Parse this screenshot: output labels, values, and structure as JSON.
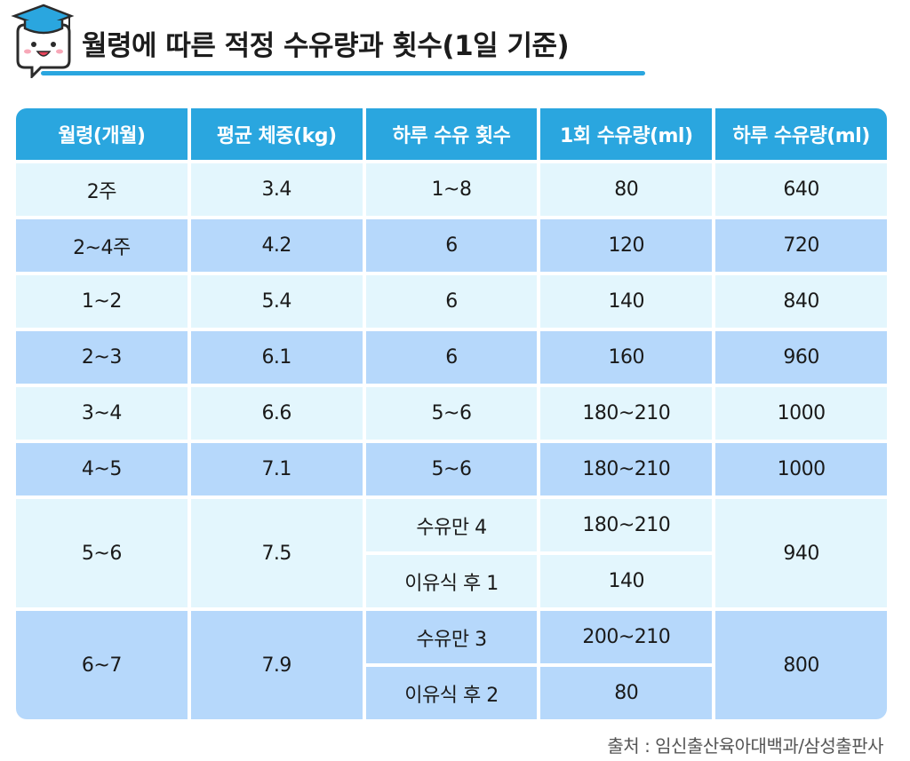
{
  "title": "월령에 따른 적정 수유량과 횟수(1일 기준)",
  "colors": {
    "header": "#2aa6df",
    "row_light": "#e3f6fd",
    "row_dark": "#b6d8fb"
  },
  "mascot_icon": "graduation-cap-speech-bubble-icon",
  "table": {
    "headers": [
      "월령(개월)",
      "평균 체중(kg)",
      "하루 수유 횟수",
      "1회 수유량(ml)",
      "하루 수유량(ml)"
    ],
    "rows": [
      {
        "age": "2주",
        "weight": "3.4",
        "count": "1~8",
        "per": "80",
        "daily": "640"
      },
      {
        "age": "2~4주",
        "weight": "4.2",
        "count": "6",
        "per": "120",
        "daily": "720"
      },
      {
        "age": "1~2",
        "weight": "5.4",
        "count": "6",
        "per": "140",
        "daily": "840"
      },
      {
        "age": "2~3",
        "weight": "6.1",
        "count": "6",
        "per": "160",
        "daily": "960"
      },
      {
        "age": "3~4",
        "weight": "6.6",
        "count": "5~6",
        "per": "180~210",
        "daily": "1000"
      },
      {
        "age": "4~5",
        "weight": "7.1",
        "count": "5~6",
        "per": "180~210",
        "daily": "1000"
      }
    ],
    "merged": [
      {
        "age": "5~6",
        "weight": "7.5",
        "daily": "940",
        "sub": [
          {
            "count": "수유만 4",
            "per": "180~210"
          },
          {
            "count": "이유식 후 1",
            "per": "140"
          }
        ]
      },
      {
        "age": "6~7",
        "weight": "7.9",
        "daily": "800",
        "sub": [
          {
            "count": "수유만 3",
            "per": "200~210"
          },
          {
            "count": "이유식 후 2",
            "per": "80"
          }
        ]
      }
    ]
  },
  "source": "출처 : 임신출산육아대백과/삼성출판사"
}
